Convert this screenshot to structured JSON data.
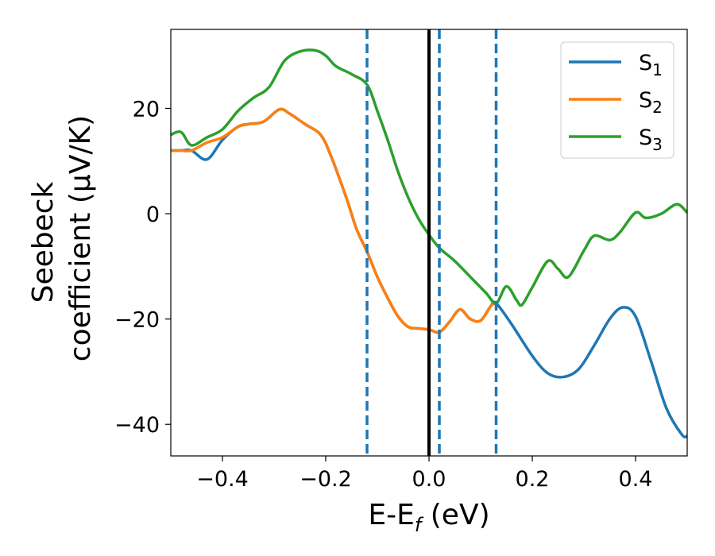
{
  "chart_data": {
    "type": "line",
    "title": "",
    "xlabel": {
      "main": "E-E",
      "sub": "f",
      "unit": " (eV)"
    },
    "ylabel": {
      "line1": "Seebeck",
      "line2": "coefficient  (μV/K)"
    },
    "xlim": [
      -0.5,
      0.5
    ],
    "ylim": [
      -46,
      35
    ],
    "xticks": [
      -0.4,
      -0.2,
      0.0,
      0.2,
      0.4
    ],
    "xtick_labels": [
      "−0.4",
      "−0.2",
      "0.0",
      "0.2",
      "0.4"
    ],
    "yticks": [
      -40,
      -20,
      0,
      20
    ],
    "ytick_labels": [
      "−40",
      "−20",
      "0",
      "20"
    ],
    "grid": false,
    "legend_position": "top-right",
    "vlines": [
      {
        "x": -0.12,
        "style": "dashed",
        "color": "#1f77b4"
      },
      {
        "x": 0.0,
        "style": "solid",
        "color": "#000000"
      },
      {
        "x": 0.02,
        "style": "dashed",
        "color": "#1f77b4"
      },
      {
        "x": 0.13,
        "style": "dashed",
        "color": "#1f77b4"
      }
    ],
    "series": [
      {
        "name": "S",
        "sub": "1",
        "color": "#1f77b4",
        "x": [
          -0.5,
          -0.48,
          -0.46,
          -0.43,
          -0.4,
          -0.37,
          -0.35,
          -0.32,
          -0.29,
          -0.27,
          -0.24,
          -0.21,
          -0.19,
          -0.16,
          -0.14,
          -0.12,
          -0.1,
          -0.08,
          -0.06,
          -0.04,
          -0.02,
          0.0,
          0.02,
          0.04,
          0.06,
          0.08,
          0.1,
          0.12,
          0.13,
          0.16,
          0.2,
          0.23,
          0.26,
          0.29,
          0.32,
          0.35,
          0.375,
          0.4,
          0.43,
          0.46,
          0.49,
          0.5
        ],
        "y": [
          12,
          12,
          12,
          10.3,
          14,
          16.5,
          17,
          17.5,
          19.8,
          19,
          17,
          15,
          11,
          3,
          -3,
          -7.2,
          -12,
          -16,
          -19.5,
          -21.5,
          -21.8,
          -22,
          -22.5,
          -20.5,
          -18.2,
          -20,
          -20.3,
          -17.5,
          -17,
          -21,
          -27,
          -30.3,
          -31,
          -29.5,
          -25,
          -20,
          -17.8,
          -19.5,
          -28,
          -37,
          -42,
          -42.2
        ]
      },
      {
        "name": "S",
        "sub": "2",
        "color": "#ff7f0e",
        "x": [
          -0.5,
          -0.48,
          -0.46,
          -0.43,
          -0.4,
          -0.37,
          -0.35,
          -0.32,
          -0.29,
          -0.27,
          -0.24,
          -0.21,
          -0.19,
          -0.16,
          -0.14,
          -0.12,
          -0.1,
          -0.08,
          -0.06,
          -0.04,
          -0.02,
          0.0,
          0.02,
          0.04,
          0.06,
          0.08,
          0.1,
          0.12,
          0.13
        ],
        "y": [
          12,
          12,
          12,
          13.5,
          14.5,
          16.5,
          17,
          17.5,
          19.8,
          19,
          17,
          15,
          11,
          3,
          -3,
          -7.2,
          -12,
          -16,
          -19.5,
          -21.5,
          -21.8,
          -22,
          -22.5,
          -20.5,
          -18.2,
          -20,
          -20.3,
          -17.5,
          -17
        ]
      },
      {
        "name": "S",
        "sub": "3",
        "color": "#2ca02c",
        "x": [
          -0.5,
          -0.48,
          -0.46,
          -0.43,
          -0.4,
          -0.37,
          -0.34,
          -0.31,
          -0.28,
          -0.25,
          -0.22,
          -0.2,
          -0.18,
          -0.15,
          -0.12,
          -0.1,
          -0.08,
          -0.06,
          -0.04,
          -0.02,
          0.0,
          0.02,
          0.05,
          0.08,
          0.11,
          0.13,
          0.15,
          0.17,
          0.18,
          0.2,
          0.23,
          0.25,
          0.27,
          0.3,
          0.32,
          0.35,
          0.37,
          0.4,
          0.42,
          0.45,
          0.48,
          0.5
        ],
        "y": [
          15,
          15.5,
          13,
          14.5,
          16,
          19.5,
          22,
          24,
          29,
          30.8,
          31,
          30,
          28,
          26.5,
          24.5,
          19.5,
          14,
          8,
          3,
          -1,
          -4,
          -6.5,
          -9,
          -12,
          -15,
          -17,
          -13.8,
          -16.5,
          -17.3,
          -14,
          -9,
          -10.5,
          -12,
          -7,
          -4.2,
          -5,
          -3.5,
          0.2,
          -0.8,
          0,
          1.8,
          0.2
        ]
      }
    ]
  }
}
